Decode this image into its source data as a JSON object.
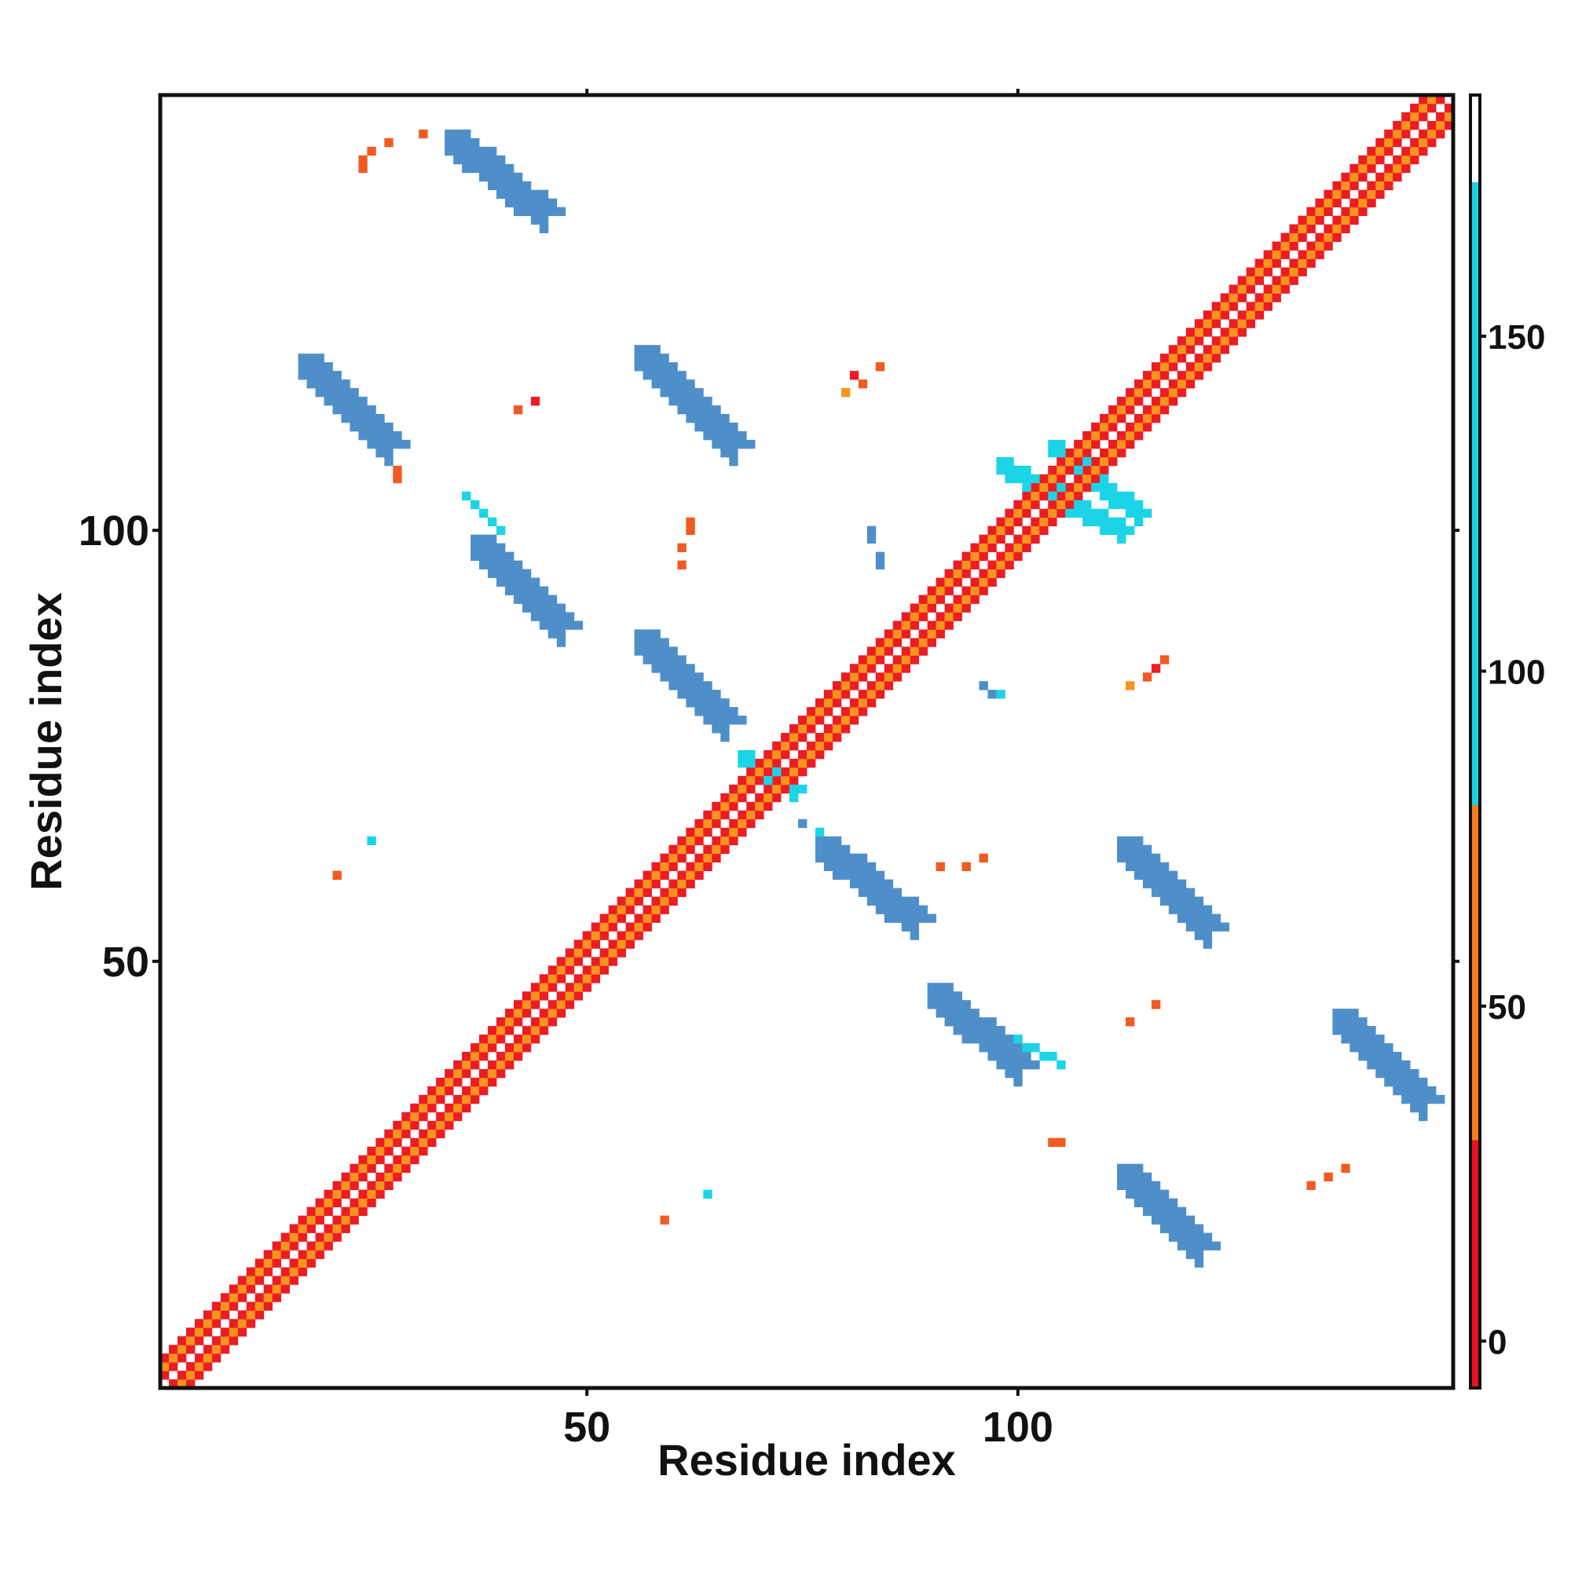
{
  "chart_data": {
    "type": "heatmap",
    "title": "",
    "xlabel": "Residue index",
    "ylabel": "Residue index",
    "xlim": [
      0.5,
      150.5
    ],
    "ylim": [
      0.5,
      150.5
    ],
    "x_ticks": [
      50,
      100
    ],
    "x_tick_labels": [
      "50",
      "100"
    ],
    "y_ticks": [
      50,
      100
    ],
    "y_tick_labels": [
      "50",
      "100"
    ],
    "colorbar": {
      "range": [
        -7,
        186
      ],
      "ticks": [
        0,
        50,
        100,
        150
      ],
      "tick_labels": [
        "0",
        "50",
        "100",
        "150"
      ],
      "bands": [
        {
          "from": -7,
          "to": 30,
          "color": "#e8131f"
        },
        {
          "from": 30,
          "to": 80,
          "color": "#f47f1a"
        },
        {
          "from": 80,
          "to": 173,
          "color": "#1cd0e0"
        },
        {
          "from": 173,
          "to": 186,
          "color": "#ffffff"
        }
      ]
    },
    "palette": {
      "red": "#ec1c24",
      "redorange": "#f15a22",
      "orange": "#f7941d",
      "cyan": "#1cd4e6",
      "steel": "#4f8fc9"
    },
    "diagonal": {
      "from": 1,
      "to": 150,
      "near_value": 10,
      "offset_value": 45
    },
    "blobs": [
      {
        "x0": 34,
        "y0": 146,
        "x1": 45,
        "y1": 137,
        "w": 3,
        "value": 150
      },
      {
        "x0": 17,
        "y0": 120,
        "x1": 27,
        "y1": 110,
        "w": 3,
        "value": 150
      },
      {
        "x0": 56,
        "y0": 121,
        "x1": 67,
        "y1": 110,
        "w": 3,
        "value": 150
      },
      {
        "x0": 37,
        "y0": 99,
        "x1": 47,
        "y1": 89,
        "w": 3,
        "value": 140
      },
      {
        "x0": 56,
        "y0": 88,
        "x1": 66,
        "y1": 78,
        "w": 3,
        "value": 130
      },
      {
        "x0": 77,
        "y0": 64,
        "x1": 88,
        "y1": 55,
        "w": 3,
        "value": 140
      },
      {
        "x0": 112,
        "y0": 64,
        "x1": 122,
        "y1": 54,
        "w": 3,
        "value": 150
      },
      {
        "x0": 90,
        "y0": 47,
        "x1": 100,
        "y1": 38,
        "w": 3,
        "value": 150
      },
      {
        "x0": 137,
        "y0": 44,
        "x1": 147,
        "y1": 34,
        "w": 3,
        "value": 150
      },
      {
        "x0": 112,
        "y0": 26,
        "x1": 121,
        "y1": 17,
        "w": 3,
        "value": 150
      },
      {
        "x0": 98,
        "y0": 108,
        "x1": 112,
        "y1": 100,
        "w": 2,
        "value": 110
      },
      {
        "x0": 104,
        "y0": 110,
        "x1": 114,
        "y1": 102,
        "w": 2,
        "value": 100
      },
      {
        "x0": 36,
        "y0": 104,
        "x1": 40,
        "y1": 100,
        "w": 1,
        "value": 100
      },
      {
        "x0": 97,
        "y0": 42,
        "x1": 105,
        "y1": 38,
        "w": 1,
        "value": 100
      },
      {
        "x0": 68,
        "y0": 74,
        "x1": 74,
        "y1": 70,
        "w": 2,
        "value": 100
      }
    ],
    "contacts": [
      [
        27,
        145,
        30
      ],
      [
        25,
        144,
        30
      ],
      [
        24,
        143,
        30
      ],
      [
        24,
        142,
        30
      ],
      [
        31,
        146,
        40
      ],
      [
        81,
        118,
        15
      ],
      [
        82,
        117,
        30
      ],
      [
        84,
        119,
        30
      ],
      [
        80,
        116,
        45
      ],
      [
        44,
        115,
        20
      ],
      [
        42,
        114,
        30
      ],
      [
        28,
        107,
        40
      ],
      [
        28,
        106,
        40
      ],
      [
        62,
        100,
        40
      ],
      [
        62,
        101,
        40
      ],
      [
        61,
        98,
        40
      ],
      [
        61,
        96,
        40
      ],
      [
        83,
        100,
        150
      ],
      [
        83,
        99,
        130
      ],
      [
        84,
        97,
        150
      ],
      [
        84,
        96,
        140
      ],
      [
        96,
        82,
        130
      ],
      [
        97,
        81,
        140
      ],
      [
        98,
        81,
        120
      ],
      [
        116,
        84,
        15
      ],
      [
        117,
        85,
        30
      ],
      [
        115,
        83,
        30
      ],
      [
        113,
        82,
        45
      ],
      [
        25,
        64,
        100
      ],
      [
        21,
        60,
        30
      ],
      [
        96,
        62,
        30
      ],
      [
        94,
        61,
        40
      ],
      [
        91,
        61,
        40
      ],
      [
        116,
        45,
        30
      ],
      [
        113,
        43,
        30
      ],
      [
        141,
        39,
        45
      ],
      [
        144,
        37,
        30
      ],
      [
        104,
        29,
        40
      ],
      [
        105,
        29,
        40
      ],
      [
        134,
        24,
        40
      ],
      [
        136,
        25,
        30
      ],
      [
        138,
        26,
        30
      ],
      [
        59,
        20,
        40
      ],
      [
        64,
        23,
        100
      ],
      [
        75,
        66,
        130
      ],
      [
        77,
        65,
        120
      ]
    ]
  }
}
